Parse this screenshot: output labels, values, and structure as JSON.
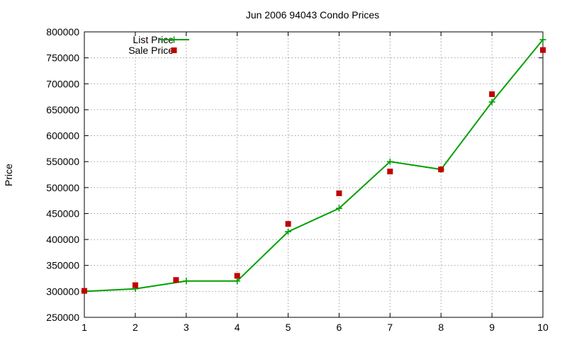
{
  "chart_data": {
    "type": "line",
    "title": "Jun 2006 94043 Condo Prices",
    "xlabel": "",
    "ylabel": "Price",
    "xlim": [
      1,
      10
    ],
    "ylim": [
      250000,
      800000
    ],
    "x_ticks": [
      1,
      2,
      3,
      4,
      5,
      6,
      7,
      8,
      9,
      10
    ],
    "y_ticks": [
      250000,
      300000,
      350000,
      400000,
      450000,
      500000,
      550000,
      600000,
      650000,
      700000,
      750000,
      800000
    ],
    "grid": true,
    "legend_position": "top-left",
    "series": [
      {
        "name": "List Price",
        "style": "line-with-plus-markers",
        "color": "#00a000",
        "x": [
          1,
          2,
          3,
          4,
          5,
          6,
          7,
          8,
          9,
          10
        ],
        "values": [
          300000,
          305000,
          320000,
          320000,
          415000,
          460000,
          550000,
          535000,
          665000,
          785000
        ]
      },
      {
        "name": "Sale Price",
        "style": "square-points",
        "color": "#c00000",
        "x": [
          1,
          2,
          2.8,
          4,
          5,
          6,
          7,
          8,
          9,
          10
        ],
        "values": [
          301000,
          312000,
          322000,
          330000,
          430000,
          489000,
          531000,
          535000,
          680000,
          765000
        ]
      }
    ]
  }
}
